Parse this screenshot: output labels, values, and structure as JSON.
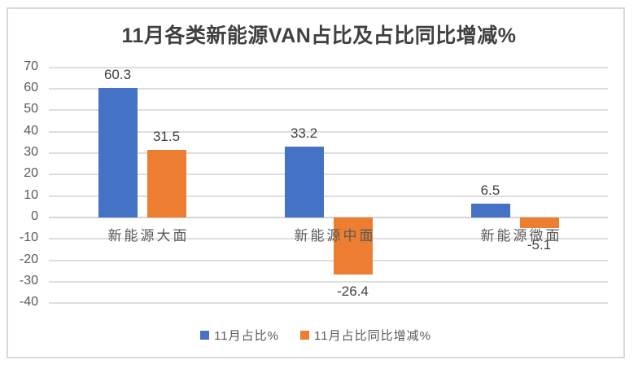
{
  "chart_data": {
    "type": "bar",
    "title": "11月各类新能源VAN占比及占比同比增减%",
    "categories": [
      "新能源大面",
      "新能源中面",
      "新能源微面"
    ],
    "series": [
      {
        "name": "11月占比%",
        "color": "#4472C4",
        "values": [
          60.3,
          33.2,
          6.5
        ]
      },
      {
        "name": "11月占比同比增减%",
        "color": "#ED7D31",
        "values": [
          31.5,
          -26.4,
          -5.1
        ]
      }
    ],
    "data_labels": [
      [
        "60.3",
        "33.2",
        "6.5"
      ],
      [
        "31.5",
        "-26.4",
        "-5.1"
      ]
    ],
    "xlabel": "",
    "ylabel": "",
    "ylim": [
      -40,
      70
    ],
    "ytick_step": 10,
    "ytick_labels": [
      "70",
      "60",
      "50",
      "40",
      "30",
      "20",
      "10",
      "0",
      "-10",
      "-20",
      "-30",
      "-40"
    ],
    "grid": true,
    "legend_position": "bottom",
    "colors": {
      "series_blue": "#4472C4",
      "series_orange": "#ED7D31",
      "gridline": "#DEDEDE",
      "frame_border": "#D9D9D9",
      "axis_text": "#595959",
      "label_text": "#404040",
      "title_text": "#404040",
      "background": "#FFFFFF"
    }
  }
}
